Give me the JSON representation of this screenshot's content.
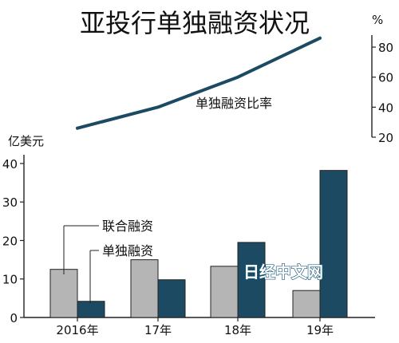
{
  "chart_data": [
    {
      "type": "line",
      "title": "亚投行单独融资状况",
      "unit": "%",
      "x": [
        "2016年",
        "17年",
        "18年",
        "19年"
      ],
      "series": [
        {
          "name": "单独融资比率",
          "values": [
            26,
            40,
            60,
            86
          ],
          "color": "#1d4a63"
        }
      ],
      "ylim": [
        20,
        88
      ],
      "yticks": [
        20,
        40,
        60,
        80
      ],
      "axis_side": "right"
    },
    {
      "type": "bar",
      "unit": "亿美元",
      "categories": [
        "2016年",
        "17年",
        "18年",
        "19年"
      ],
      "series": [
        {
          "name": "联合融资",
          "values": [
            12.5,
            15,
            13.3,
            7
          ],
          "color": "#b5b5b5"
        },
        {
          "name": "单独融资",
          "values": [
            4.2,
            9.8,
            19.5,
            38.2
          ],
          "color": "#1d4a63"
        }
      ],
      "ylim": [
        0,
        46
      ],
      "yticks": [
        0,
        10,
        20,
        30,
        40
      ]
    }
  ],
  "watermark": "日经中文网"
}
